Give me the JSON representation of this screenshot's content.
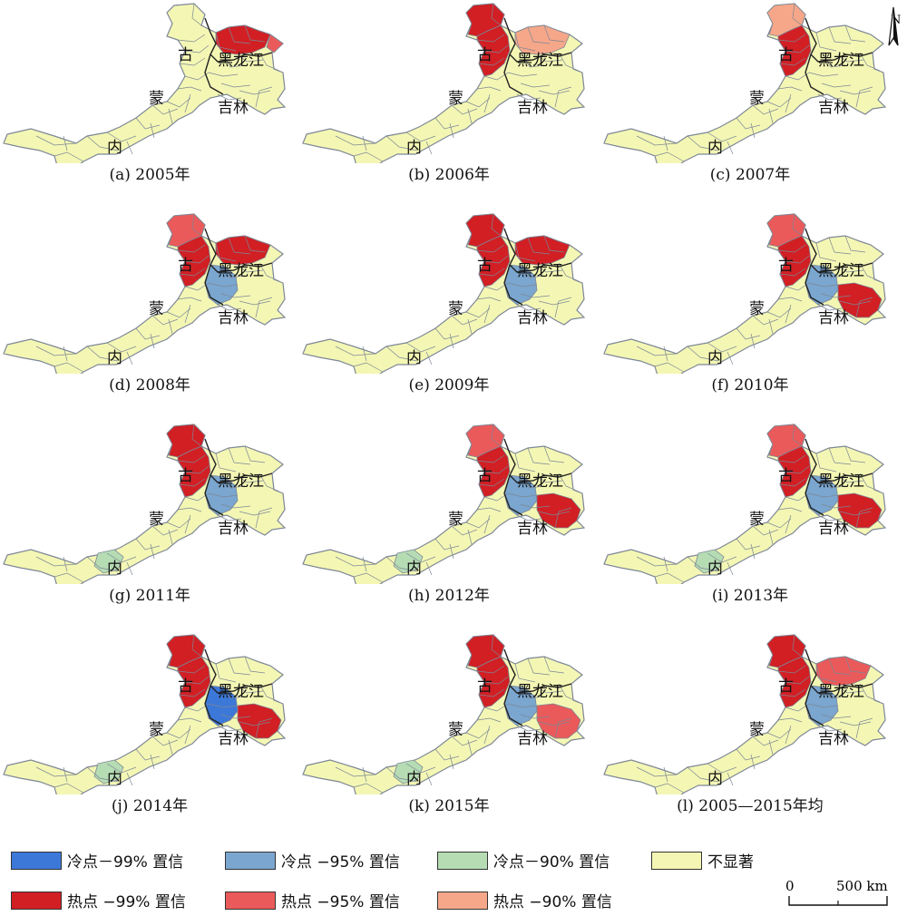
{
  "colors": {
    "cold_99": "#3c78d8",
    "cold_95": "#7aa6cf",
    "cold_90": "#b6dcb4",
    "not_significant": "#f4f7b4",
    "hot_99": "#d11f24",
    "hot_95": "#ea5a5a",
    "hot_90": "#f6a789",
    "boundary": "#7d8796",
    "province_line": "#222222"
  },
  "region_labels": {
    "gu": "古",
    "heilongjiang": "黑龙江",
    "meng": "蒙",
    "jilin": "吉林",
    "nei": "内"
  },
  "panels": [
    {
      "caption": "(a) 2005年",
      "north_ne": "hot_99",
      "north_west": "none",
      "north_top": "none",
      "jilin_se": "none",
      "central": "none",
      "west_inner": "none",
      "far_ne": "hot_95"
    },
    {
      "caption": "(b) 2006年",
      "north_ne": "hot_90",
      "north_west": "hot_99",
      "north_top": "hot_99",
      "jilin_se": "none",
      "central": "none",
      "west_inner": "none",
      "far_ne": "none"
    },
    {
      "caption": "(c) 2007年",
      "north_ne": "none",
      "north_west": "hot_99",
      "north_top": "hot_90",
      "jilin_se": "none",
      "central": "none",
      "west_inner": "none",
      "far_ne": "none"
    },
    {
      "caption": "(d) 2008年",
      "north_ne": "hot_99",
      "north_west": "hot_99",
      "north_top": "hot_95",
      "jilin_se": "none",
      "central": "cold_95",
      "west_inner": "none",
      "far_ne": "none"
    },
    {
      "caption": "(e) 2009年",
      "north_ne": "hot_99",
      "north_west": "hot_99",
      "north_top": "hot_99",
      "jilin_se": "none",
      "central": "cold_95",
      "west_inner": "none",
      "far_ne": "none"
    },
    {
      "caption": "(f) 2010年",
      "north_ne": "none",
      "north_west": "hot_99",
      "north_top": "hot_95",
      "jilin_se": "hot_99",
      "central": "cold_95",
      "west_inner": "none",
      "far_ne": "none"
    },
    {
      "caption": "(g) 2011年",
      "north_ne": "none",
      "north_west": "hot_99",
      "north_top": "hot_99",
      "jilin_se": "none",
      "central": "cold_95",
      "west_inner": "cold_90",
      "far_ne": "none"
    },
    {
      "caption": "(h) 2012年",
      "north_ne": "none",
      "north_west": "hot_99",
      "north_top": "hot_95",
      "jilin_se": "hot_99",
      "central": "cold_95",
      "west_inner": "cold_90",
      "far_ne": "none"
    },
    {
      "caption": "(i) 2013年",
      "north_ne": "none",
      "north_west": "hot_99",
      "north_top": "hot_95",
      "jilin_se": "hot_99",
      "central": "cold_95",
      "west_inner": "cold_90",
      "far_ne": "none"
    },
    {
      "caption": "(j) 2014年",
      "north_ne": "none",
      "north_west": "hot_99",
      "north_top": "hot_99",
      "jilin_se": "hot_99",
      "central": "cold_99",
      "west_inner": "cold_90",
      "far_ne": "none"
    },
    {
      "caption": "(k) 2015年",
      "north_ne": "none",
      "north_west": "hot_99",
      "north_top": "hot_99",
      "jilin_se": "hot_95",
      "central": "cold_95",
      "west_inner": "cold_90",
      "far_ne": "none"
    },
    {
      "caption": "(l) 2005—2015年均",
      "north_ne": "hot_95",
      "north_west": "hot_99",
      "north_top": "hot_99",
      "jilin_se": "none",
      "central": "cold_95",
      "west_inner": "none",
      "far_ne": "none"
    }
  ],
  "legend": [
    {
      "key": "cold_99",
      "label": "冷点－99% 置信"
    },
    {
      "key": "cold_95",
      "label": "冷点 −95% 置信"
    },
    {
      "key": "cold_90",
      "label": "冷点－90% 置信"
    },
    {
      "key": "not_significant",
      "label": "不显著"
    },
    {
      "key": "hot_99",
      "label": "热点 −99%  置信"
    },
    {
      "key": "hot_95",
      "label": "热点 −95% 置信"
    },
    {
      "key": "hot_90",
      "label": "热点 −90%  置信"
    }
  ],
  "scale_bar": {
    "zero": "0",
    "distance": "500 km"
  },
  "north_label": "N"
}
